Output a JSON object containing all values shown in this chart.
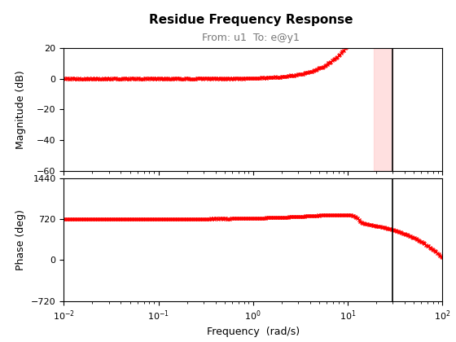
{
  "title": "Residue Frequency Response",
  "subtitle": "From: u1  To: e@y1",
  "ylabel_mag": "Magnitude (dB)",
  "ylabel_phase": "Phase (deg)",
  "xlabel": "Frequency  (rad/s)",
  "vline_freq": 30.0,
  "mag_ylim": [
    -60,
    20
  ],
  "phase_ylim": [
    -720,
    1440
  ],
  "freq_xlim": [
    0.01,
    100
  ],
  "marker_color": "#FF0000",
  "vline_color": "#000000",
  "shade_color": "#FFCCCC",
  "marker": "x",
  "markersize": 3,
  "title_fontsize": 11,
  "subtitle_fontsize": 9,
  "label_fontsize": 9,
  "tick_fontsize": 8
}
